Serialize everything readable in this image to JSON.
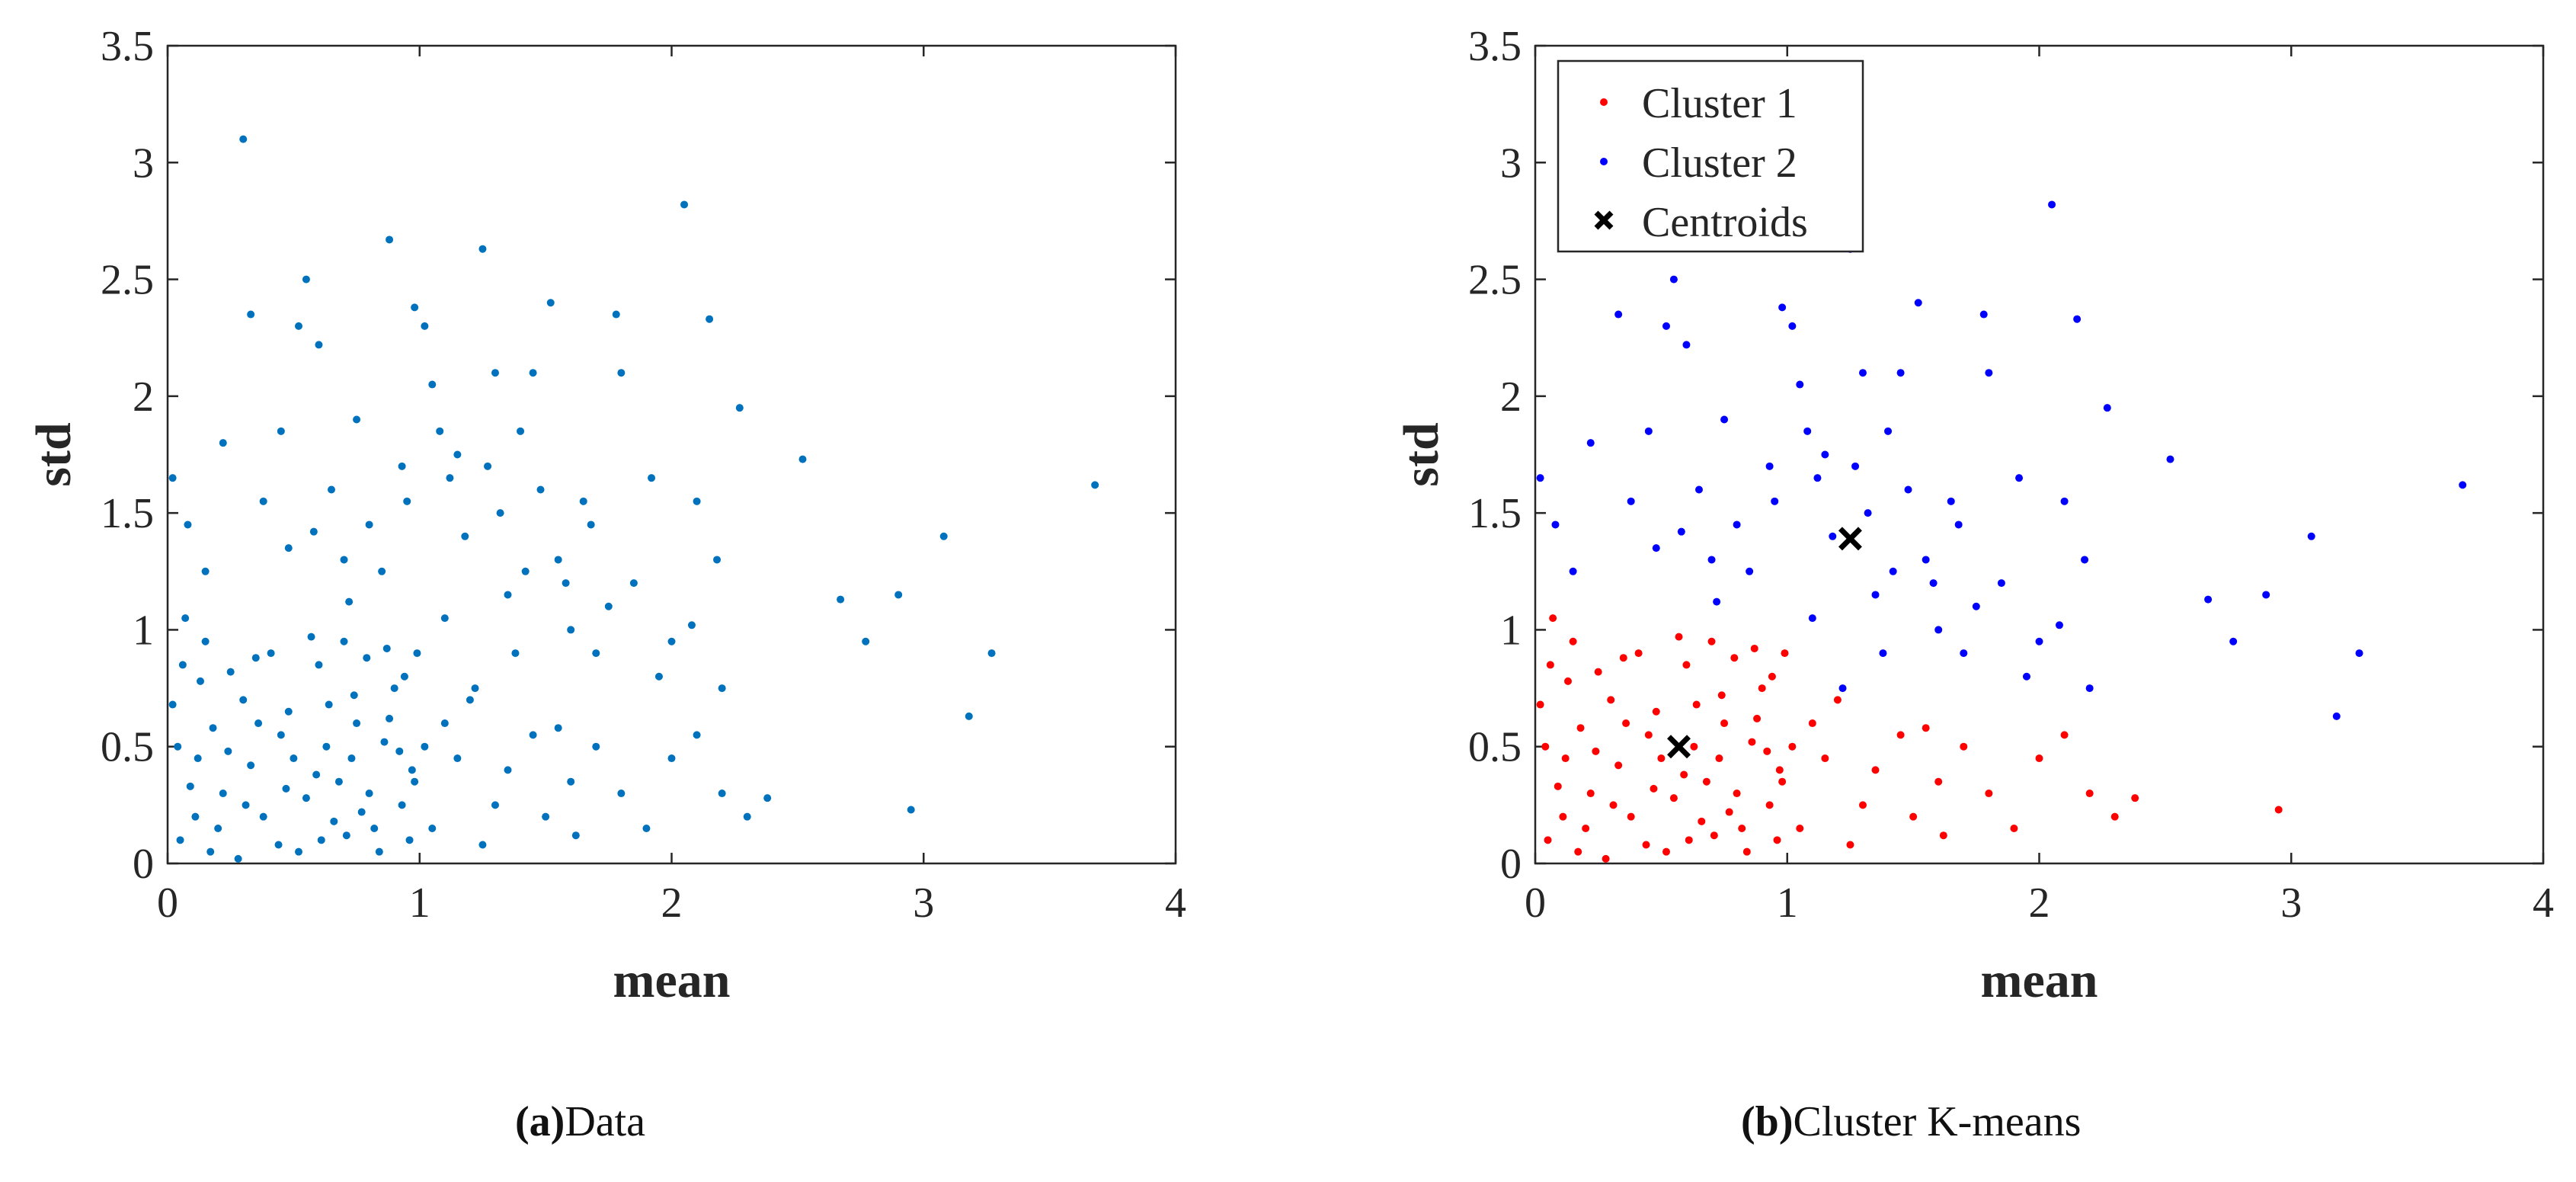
{
  "chart_data": [
    {
      "id": "a",
      "type": "scatter",
      "title": "",
      "caption": {
        "paren_open": "(",
        "label": "a",
        "paren_close": ")",
        "text": "Data"
      },
      "xlabel": "mean",
      "ylabel": "std",
      "xlim": [
        0,
        4
      ],
      "ylim": [
        0,
        3.5
      ],
      "xticks": [
        "0",
        "1",
        "2",
        "3",
        "4"
      ],
      "yticks": [
        "0",
        "0.5",
        "1",
        "1.5",
        "2",
        "2.5",
        "3",
        "3.5"
      ],
      "grid": false,
      "legend": null,
      "colors": {
        "points": "#0072BD"
      },
      "series": [
        {
          "name": "Data",
          "source": "all points (cluster 1 + cluster 2)"
        }
      ]
    },
    {
      "id": "b",
      "type": "scatter",
      "title": "",
      "caption": {
        "paren_open": "(",
        "label": "b",
        "paren_close": ")",
        "text": "Cluster K-means"
      },
      "xlabel": "mean",
      "ylabel": "std",
      "xlim": [
        0,
        4
      ],
      "ylim": [
        0,
        3.5
      ],
      "xticks": [
        "0",
        "1",
        "2",
        "3",
        "4"
      ],
      "yticks": [
        "0",
        "0.5",
        "1",
        "1.5",
        "2",
        "2.5",
        "3",
        "3.5"
      ],
      "grid": false,
      "legend": {
        "position": "top-left",
        "entries": [
          "Cluster 1",
          "Cluster 2",
          "Centroids"
        ]
      },
      "colors": {
        "cluster1": "#ff0000",
        "cluster2": "#0000ff",
        "centroid": "#000000"
      },
      "centroids": [
        {
          "x": 0.57,
          "y": 0.5
        },
        {
          "x": 1.25,
          "y": 1.39
        }
      ]
    }
  ],
  "clusters": {
    "cluster1": [
      [
        0.05,
        0.1
      ],
      [
        0.12,
        0.45
      ],
      [
        0.22,
        0.3
      ],
      [
        0.3,
        0.7
      ],
      [
        0.38,
        0.2
      ],
      [
        0.45,
        0.55
      ],
      [
        0.52,
        0.05
      ],
      [
        0.6,
        0.85
      ],
      [
        0.68,
        0.35
      ],
      [
        0.75,
        0.6
      ],
      [
        0.82,
        0.15
      ],
      [
        0.9,
        0.75
      ],
      [
        0.97,
        0.4
      ],
      [
        0.15,
        0.95
      ],
      [
        0.28,
        0.02
      ],
      [
        0.41,
        0.9
      ],
      [
        0.55,
        0.28
      ],
      [
        0.63,
        0.5
      ],
      [
        0.71,
        0.12
      ],
      [
        0.79,
        0.88
      ],
      [
        0.86,
        0.52
      ],
      [
        0.93,
        0.25
      ],
      [
        0.02,
        0.68
      ],
      [
        0.09,
        0.33
      ],
      [
        0.18,
        0.58
      ],
      [
        0.25,
        0.82
      ],
      [
        0.33,
        0.42
      ],
      [
        0.48,
        0.65
      ],
      [
        0.57,
        0.97
      ],
      [
        0.66,
        0.18
      ],
      [
        0.74,
        0.72
      ],
      [
        0.84,
        0.05
      ],
      [
        0.92,
        0.48
      ],
      [
        0.99,
        0.9
      ],
      [
        0.07,
        1.05
      ],
      [
        0.2,
        0.15
      ],
      [
        0.36,
        0.6
      ],
      [
        0.44,
        0.08
      ],
      [
        0.59,
        0.38
      ],
      [
        0.7,
        0.95
      ],
      [
        0.8,
        0.3
      ],
      [
        0.88,
        0.62
      ],
      [
        0.96,
        0.1
      ],
      [
        0.04,
        0.5
      ],
      [
        0.13,
        0.78
      ],
      [
        0.31,
        0.25
      ],
      [
        0.5,
        0.45
      ],
      [
        0.64,
        0.68
      ],
      [
        0.77,
        0.22
      ],
      [
        0.94,
        0.8
      ],
      [
        0.11,
        0.2
      ],
      [
        0.24,
        0.48
      ],
      [
        0.35,
        0.88
      ],
      [
        0.47,
        0.32
      ],
      [
        0.61,
        0.1
      ],
      [
        0.73,
        0.45
      ],
      [
        0.87,
        0.92
      ],
      [
        0.98,
        0.35
      ],
      [
        0.06,
        0.85
      ],
      [
        0.17,
        0.05
      ],
      [
        1.02,
        0.5
      ],
      [
        1.05,
        0.15
      ],
      [
        1.1,
        0.6
      ],
      [
        1.15,
        0.45
      ],
      [
        1.2,
        0.7
      ],
      [
        1.3,
        0.25
      ],
      [
        1.35,
        0.4
      ],
      [
        1.45,
        0.55
      ],
      [
        1.5,
        0.2
      ],
      [
        1.6,
        0.35
      ],
      [
        1.7,
        0.5
      ],
      [
        1.8,
        0.3
      ],
      [
        1.9,
        0.15
      ],
      [
        2.0,
        0.45
      ],
      [
        2.1,
        0.55
      ],
      [
        2.2,
        0.3
      ],
      [
        2.3,
        0.2
      ],
      [
        2.38,
        0.28
      ],
      [
        2.95,
        0.23
      ],
      [
        1.25,
        0.08
      ],
      [
        1.55,
        0.58
      ],
      [
        1.62,
        0.12
      ]
    ],
    "cluster2": [
      [
        0.02,
        1.65
      ],
      [
        0.08,
        1.45
      ],
      [
        0.15,
        1.25
      ],
      [
        0.22,
        1.8
      ],
      [
        0.3,
        3.1
      ],
      [
        0.33,
        2.35
      ],
      [
        0.38,
        1.55
      ],
      [
        0.45,
        1.85
      ],
      [
        0.52,
        2.3
      ],
      [
        0.55,
        2.5
      ],
      [
        0.6,
        2.22
      ],
      [
        0.65,
        1.6
      ],
      [
        0.7,
        1.3
      ],
      [
        0.75,
        1.9
      ],
      [
        0.8,
        1.45
      ],
      [
        0.88,
        2.67
      ],
      [
        0.93,
        1.7
      ],
      [
        0.98,
        2.38
      ],
      [
        1.02,
        2.3
      ],
      [
        1.05,
        2.05
      ],
      [
        1.12,
        1.65
      ],
      [
        1.18,
        1.4
      ],
      [
        1.25,
        2.63
      ],
      [
        1.3,
        2.1
      ],
      [
        1.35,
        1.15
      ],
      [
        1.4,
        1.85
      ],
      [
        1.45,
        2.1
      ],
      [
        1.52,
        2.4
      ],
      [
        1.55,
        1.3
      ],
      [
        1.6,
        1.0
      ],
      [
        1.65,
        1.55
      ],
      [
        1.7,
        0.9
      ],
      [
        1.78,
        2.35
      ],
      [
        1.8,
        2.1
      ],
      [
        1.85,
        1.2
      ],
      [
        1.92,
        1.65
      ],
      [
        2.0,
        0.95
      ],
      [
        2.05,
        2.82
      ],
      [
        2.1,
        1.55
      ],
      [
        2.15,
        2.33
      ],
      [
        2.2,
        0.75
      ],
      [
        2.27,
        1.95
      ],
      [
        2.52,
        1.73
      ],
      [
        2.67,
        1.13
      ],
      [
        2.77,
        0.95
      ],
      [
        2.9,
        1.15
      ],
      [
        3.08,
        1.4
      ],
      [
        3.18,
        0.63
      ],
      [
        3.27,
        0.9
      ],
      [
        3.68,
        1.62
      ],
      [
        1.1,
        1.05
      ],
      [
        1.22,
        0.75
      ],
      [
        1.38,
        0.9
      ],
      [
        1.58,
        1.2
      ],
      [
        1.75,
        1.1
      ],
      [
        1.95,
        0.8
      ],
      [
        2.18,
        1.3
      ],
      [
        1.32,
        1.5
      ],
      [
        1.48,
        1.6
      ],
      [
        1.68,
        1.45
      ],
      [
        0.48,
        1.35
      ],
      [
        0.58,
        1.42
      ],
      [
        0.72,
        1.12
      ],
      [
        0.85,
        1.25
      ],
      [
        0.95,
        1.55
      ],
      [
        1.08,
        1.85
      ],
      [
        1.15,
        1.75
      ],
      [
        1.27,
        1.7
      ],
      [
        1.42,
        1.25
      ],
      [
        2.08,
        1.02
      ]
    ]
  }
}
